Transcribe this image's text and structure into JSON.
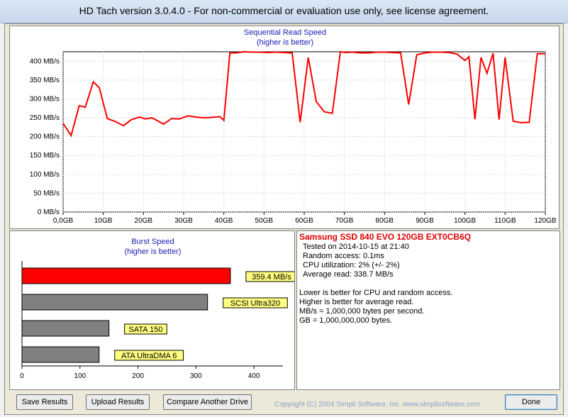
{
  "window": {
    "title": "HD Tach version 3.0.4.0  - For non-commercial or evaluation use only, see license agreement."
  },
  "seq_chart": {
    "title": "Sequential Read Speed",
    "subtitle": "(higher is better)",
    "line_color": "#ff0000"
  },
  "burst_chart": {
    "title": "Burst Speed",
    "subtitle": "(higher is better)"
  },
  "chart_data": [
    {
      "type": "line",
      "title": "Sequential Read Speed",
      "subtitle": "(higher is better)",
      "xlabel": "",
      "ylabel": "",
      "xlim": [
        0,
        120
      ],
      "ylim": [
        0,
        425
      ],
      "x_ticks": [
        "0,0GB",
        "10GB",
        "20GB",
        "30GB",
        "40GB",
        "50GB",
        "60GB",
        "70GB",
        "80GB",
        "90GB",
        "100GB",
        "110GB",
        "120GB"
      ],
      "y_ticks": [
        "0 MB/s",
        "50 MB/s",
        "100 MB/s",
        "150 MB/s",
        "200 MB/s",
        "250 MB/s",
        "300 MB/s",
        "350 MB/s",
        "400 MB/s"
      ],
      "grid": true,
      "series": [
        {
          "x": [
            0,
            2,
            4,
            5.5,
            7.5,
            9,
            11,
            13,
            15,
            17,
            19,
            20.5,
            22,
            23,
            25,
            27,
            29,
            31,
            33,
            35,
            37,
            39,
            40,
            41.5,
            43,
            45,
            47,
            49,
            51,
            53,
            55,
            57,
            59,
            61,
            63,
            65,
            67,
            69,
            70.5,
            72,
            74,
            76,
            78,
            80,
            82,
            84,
            86,
            88,
            90,
            92,
            94,
            96,
            98,
            100,
            101,
            102.5,
            104,
            105.5,
            107,
            108.5,
            110,
            112,
            114,
            116,
            118,
            120
          ],
          "y": [
            235,
            203,
            282,
            278,
            345,
            330,
            248,
            240,
            229,
            245,
            252,
            247,
            250,
            245,
            233,
            248,
            247,
            255,
            252,
            250,
            251,
            253,
            243,
            422,
            422,
            425,
            424,
            424,
            423,
            424,
            423,
            422,
            238,
            410,
            293,
            266,
            262,
            425,
            423,
            424,
            422,
            422,
            424,
            424,
            423,
            422,
            285,
            417,
            422,
            424,
            424,
            423,
            419,
            402,
            412,
            246,
            410,
            368,
            421,
            245,
            410,
            241,
            237,
            238,
            420,
            420
          ]
        }
      ]
    },
    {
      "type": "bar",
      "orientation": "horizontal",
      "title": "Burst Speed",
      "subtitle": "(higher is better)",
      "xlim": [
        0,
        450
      ],
      "x_ticks": [
        "0",
        "100",
        "200",
        "300",
        "400"
      ],
      "categories": [
        "Samsung SSD 840 EVO 120GB EXT0CB6Q",
        "SCSI Ultra320",
        "SATA 150",
        "ATA UltraDMA 6"
      ],
      "values": [
        359.4,
        320,
        150,
        133
      ],
      "labels": [
        "359.4 MB/s",
        "SCSI Ultra320",
        "SATA 150",
        "ATA UltraDMA 6"
      ],
      "colors": [
        "#ff0000",
        "#808080",
        "#808080",
        "#808080"
      ]
    }
  ],
  "info": {
    "drive_name": "Samsung SSD 840 EVO 120GB EXT0CB6Q",
    "tested_on": "Tested on 2014-10-15 at 21:40",
    "random_access": "Random access: 0.1ms",
    "cpu_util": "CPU utilization: 2% (+/- 2%)",
    "avg_read": "Average read: 338.7 MB/s",
    "note1": "Lower is better for CPU and random access.",
    "note2": "Higher is better for average read.",
    "note3": "MB/s = 1,000,000 bytes per second.",
    "note4": "GB = 1,000,000,000 bytes."
  },
  "buttons": {
    "save": "Save Results",
    "upload": "Upload Results",
    "compare": "Compare Another Drive",
    "done": "Done"
  },
  "copyright": "Copyright (C) 2004 Simpli Software, Inc. www.simplisoftware.com"
}
